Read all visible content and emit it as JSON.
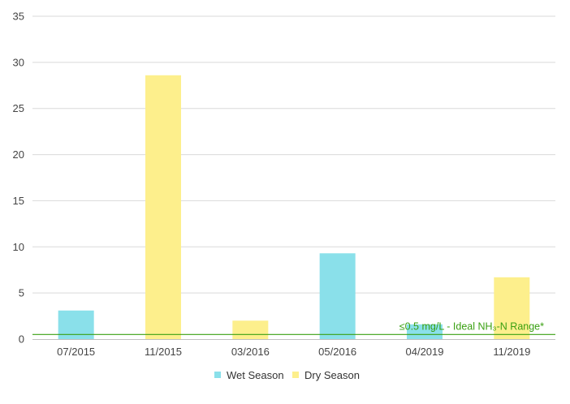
{
  "chart_data": {
    "type": "bar",
    "categories": [
      "07/2015",
      "11/2015",
      "03/2016",
      "05/2016",
      "04/2019",
      "11/2019"
    ],
    "values": [
      3.1,
      28.6,
      2.0,
      9.3,
      1.6,
      6.7
    ],
    "seasons": [
      "wet",
      "dry",
      "dry",
      "wet",
      "wet",
      "dry"
    ],
    "series": [
      {
        "key": "wet",
        "name": "Wet Season",
        "color": "#8ae0ea"
      },
      {
        "key": "dry",
        "name": "Dry Season",
        "color": "#fdef8c"
      }
    ],
    "title": "",
    "xlabel": "",
    "ylabel": "",
    "ylim": [
      0,
      35
    ],
    "yticks": [
      0,
      5,
      10,
      15,
      20,
      25,
      30,
      35
    ],
    "grid": true,
    "legend_position": "bottom",
    "reference_line": {
      "value": 0.5,
      "label": "≤0.5 mg/L - Ideal NH₃-N Range*",
      "color": "#3aa012"
    }
  }
}
